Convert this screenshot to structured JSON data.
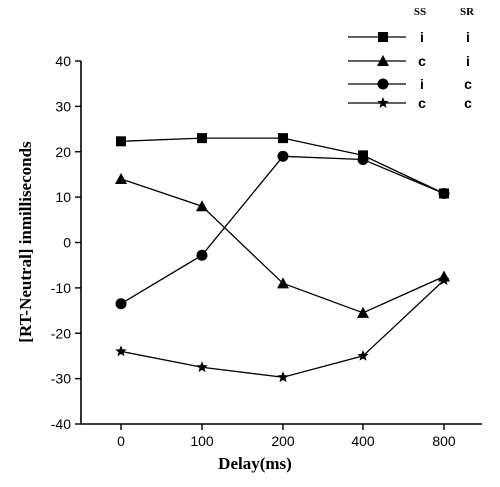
{
  "chart_data": {
    "type": "line",
    "title": "",
    "xlabel": "Delay(ms)",
    "ylabel": "[RT-Neutral] inmilliseconds",
    "categories": [
      "0",
      "100",
      "200",
      "400",
      "800"
    ],
    "ylim": [
      -40,
      40
    ],
    "yticks": [
      -40,
      -30,
      -20,
      -10,
      0,
      10,
      20,
      30,
      40
    ],
    "legend_position": "top-right",
    "legend_headers": [
      "SS",
      "SR"
    ],
    "series": [
      {
        "ss": "i",
        "sr": "i",
        "marker": "square",
        "values": [
          22.3,
          23.0,
          23.0,
          19.2,
          10.8
        ]
      },
      {
        "ss": "c",
        "sr": "i",
        "marker": "triangle",
        "values": [
          14.0,
          8.0,
          -9.0,
          -15.5,
          -7.5
        ]
      },
      {
        "ss": "i",
        "sr": "c",
        "marker": "circle",
        "values": [
          -13.5,
          -2.8,
          19.0,
          18.3,
          10.8
        ]
      },
      {
        "ss": "c",
        "sr": "c",
        "marker": "star",
        "values": [
          -24.0,
          -27.5,
          -29.7,
          -25.0,
          -8.3
        ]
      }
    ],
    "grid": false
  }
}
